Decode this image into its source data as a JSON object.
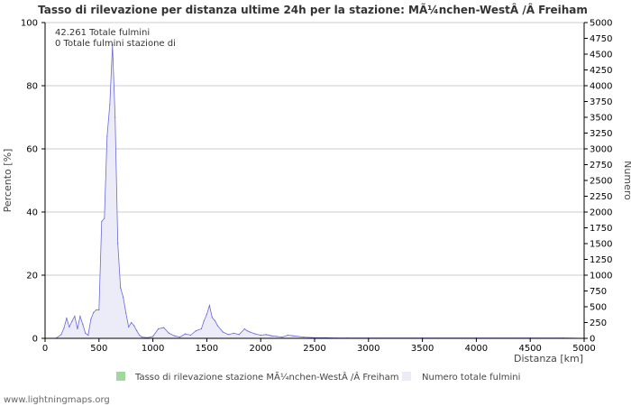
{
  "chart_data": {
    "type": "area",
    "title": "Tasso di rilevazione per distanza ultime 24h per la stazione: MÃ¼nchen-WestÂ /Â Freiham",
    "xlabel": "Distanza   [km]",
    "ylabel_left": "Percento   [%]",
    "ylabel_right": "Numero",
    "xlim": [
      0,
      5000
    ],
    "ylim_left": [
      0,
      100
    ],
    "ylim_right": [
      0,
      5000
    ],
    "x_ticks": [
      0,
      500,
      1000,
      1500,
      2000,
      2500,
      3000,
      3500,
      4000,
      4500,
      5000
    ],
    "y_left_ticks": [
      0,
      20,
      40,
      60,
      80,
      100
    ],
    "y_right_ticks": [
      0,
      250,
      500,
      750,
      1000,
      1250,
      1500,
      1750,
      2000,
      2250,
      2500,
      2750,
      3000,
      3250,
      3500,
      3750,
      4000,
      4250,
      4500,
      4750,
      5000
    ],
    "grid": true,
    "annotations": [
      "42.261 Totale fulmini",
      "0 Totale fulmini stazione di"
    ],
    "series": [
      {
        "name": "Tasso di rilevazione stazione MÃ¼nchen-WestÂ /Â Freiham",
        "axis": "left",
        "color": "#a0d8a0",
        "x": [
          0,
          5000
        ],
        "values": [
          0,
          0
        ]
      },
      {
        "name": "Numero totale fulmini",
        "axis": "right",
        "color": "#ececf8",
        "line_color": "#6a6ad8",
        "x": [
          0,
          100,
          150,
          175,
          200,
          225,
          250,
          275,
          300,
          325,
          350,
          375,
          400,
          425,
          450,
          475,
          500,
          525,
          550,
          575,
          600,
          625,
          650,
          675,
          700,
          725,
          750,
          775,
          800,
          825,
          850,
          875,
          900,
          950,
          1000,
          1050,
          1100,
          1150,
          1200,
          1250,
          1300,
          1350,
          1400,
          1450,
          1475,
          1500,
          1525,
          1550,
          1575,
          1600,
          1650,
          1700,
          1750,
          1800,
          1850,
          1875,
          1900,
          1950,
          2000,
          2050,
          2100,
          2150,
          2200,
          2250,
          2300,
          2400,
          2500,
          2600,
          2700,
          2800,
          3000,
          3500,
          4000,
          4500,
          4800,
          5000
        ],
        "values": [
          0,
          0,
          60,
          160,
          320,
          180,
          270,
          350,
          150,
          350,
          220,
          80,
          50,
          300,
          410,
          450,
          450,
          1850,
          1900,
          3200,
          3700,
          4650,
          3500,
          1500,
          800,
          650,
          400,
          180,
          250,
          200,
          120,
          50,
          20,
          10,
          30,
          150,
          170,
          80,
          40,
          20,
          70,
          50,
          120,
          150,
          280,
          380,
          520,
          330,
          280,
          200,
          100,
          60,
          80,
          60,
          150,
          120,
          100,
          70,
          50,
          60,
          40,
          30,
          20,
          50,
          40,
          20,
          10,
          10,
          5,
          5,
          5,
          5,
          5,
          5,
          5,
          0
        ]
      }
    ]
  },
  "credit": "www.lightningmaps.org"
}
